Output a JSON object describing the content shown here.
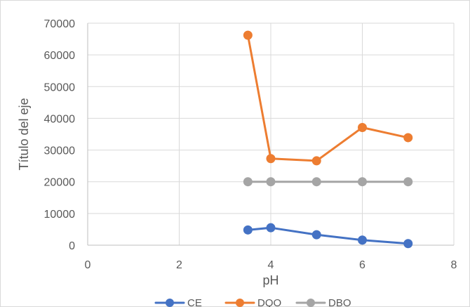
{
  "chart_data": {
    "type": "scatter",
    "title": "",
    "xlabel": "pH",
    "ylabel": "Título del eje",
    "xlim": [
      0,
      8
    ],
    "ylim": [
      0,
      70000
    ],
    "x_ticks": [
      "0",
      "2",
      "4",
      "6",
      "8"
    ],
    "y_ticks": [
      "0",
      "10000",
      "20000",
      "30000",
      "40000",
      "50000",
      "60000",
      "70000"
    ],
    "grid": true,
    "legend_position": "bottom",
    "x": [
      3.5,
      4,
      5,
      6,
      7
    ],
    "series": [
      {
        "name": "CE",
        "color": "#4472c4",
        "values": [
          4800,
          5500,
          3300,
          1600,
          500
        ]
      },
      {
        "name": "DQO",
        "color": "#ed7d31",
        "values": [
          66200,
          27300,
          26600,
          37100,
          33900
        ]
      },
      {
        "name": "DBO",
        "color": "#a5a5a5",
        "values": [
          20000,
          20000,
          20000,
          20000,
          20000
        ]
      }
    ]
  }
}
